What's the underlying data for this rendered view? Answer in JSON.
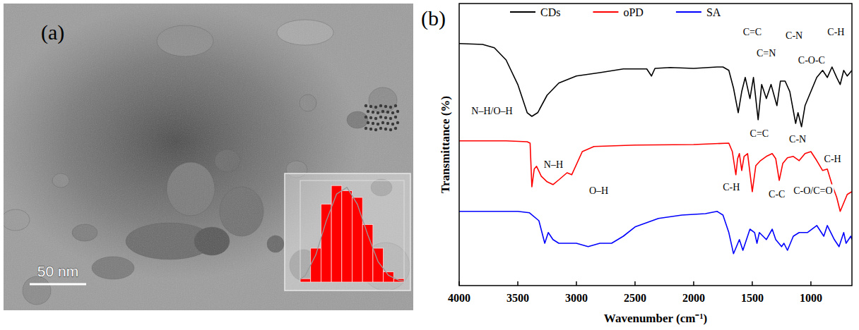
{
  "panels": {
    "a": "(a)",
    "b": "(b)"
  },
  "image": {
    "scale_bar": "50 nm"
  },
  "chart_data": [
    {
      "type": "histogram",
      "bins": [
        1.5,
        1.8,
        2.1,
        2.4,
        2.7,
        3.0,
        3.3,
        3.6,
        3.9,
        4.2,
        4.5
      ],
      "counts": [
        1,
        10,
        23,
        28.5,
        27,
        25,
        17,
        10,
        3,
        1
      ],
      "color": "#ff0000",
      "series": [
        {
          "type": "line",
          "color": "#9a9a9a",
          "x": [
            1.5,
            1.65,
            1.95,
            2.25,
            2.55,
            2.85,
            3.15,
            3.45,
            3.75,
            4.05,
            4.35,
            4.5
          ],
          "values": [
            0.8,
            2,
            8,
            18,
            26,
            28,
            23,
            14,
            6,
            2,
            0.5,
            0.3
          ]
        }
      ],
      "xlim": [
        1.5,
        4.5
      ],
      "ylim": [
        0,
        30
      ],
      "tick_labels": false
    },
    {
      "type": "line",
      "xlabel": "Wavenumber (cm⁻¹)",
      "ylabel": "Transmittance (%)",
      "xlim": [
        4000,
        650
      ],
      "ylim": [
        0,
        100
      ],
      "xticks": [
        4000,
        3500,
        3000,
        2500,
        2000,
        1500,
        1000
      ],
      "tick_labels": "x",
      "legend": "top",
      "series": [
        {
          "name": "CDs",
          "color": "#000000",
          "x": [
            4000,
            3800,
            3700,
            3600,
            3500,
            3420,
            3380,
            3330,
            3250,
            3150,
            3000,
            2800,
            2600,
            2400,
            2360,
            2330,
            2200,
            2000,
            1800,
            1750,
            1700,
            1660,
            1620,
            1590,
            1560,
            1520,
            1490,
            1450,
            1420,
            1380,
            1340,
            1290,
            1260,
            1220,
            1180,
            1130,
            1110,
            1080,
            1050,
            1000,
            950,
            900,
            860,
            820,
            780,
            750,
            720,
            690,
            650
          ],
          "values": [
            85.8,
            85.5,
            84.3,
            80,
            71.3,
            61.3,
            60,
            61.3,
            67.5,
            71.8,
            74.3,
            75.5,
            76.8,
            76.8,
            74.3,
            77,
            77.3,
            77,
            77.5,
            77.5,
            76.3,
            70,
            61.3,
            68.8,
            73.8,
            66.3,
            73.8,
            58.8,
            71.3,
            66.3,
            71.3,
            63.8,
            72.5,
            72.5,
            68.8,
            57.5,
            61.3,
            56.3,
            63.8,
            68.8,
            73.8,
            76.3,
            73.8,
            77.5,
            73.8,
            71.3,
            76.3,
            74.3,
            76.3
          ]
        },
        {
          "name": "oPD",
          "color": "#ff0000",
          "x": [
            4000,
            3600,
            3420,
            3395,
            3380,
            3360,
            3340,
            3300,
            3250,
            3200,
            3150,
            3080,
            3040,
            2950,
            2850,
            2500,
            2000,
            1700,
            1670,
            1640,
            1625,
            1610,
            1590,
            1570,
            1540,
            1500,
            1470,
            1430,
            1380,
            1330,
            1300,
            1270,
            1240,
            1200,
            1150,
            1100,
            1050,
            1000,
            950,
            900,
            860,
            820,
            780,
            750,
            720,
            690,
            650
          ],
          "values": [
            51.3,
            51.3,
            51,
            50.5,
            35,
            41.3,
            42.3,
            38.8,
            36.8,
            35.8,
            37.5,
            40,
            39.3,
            47.5,
            49.3,
            49.8,
            50,
            50.5,
            47.5,
            39.3,
            45,
            46.8,
            40.8,
            45.8,
            46.8,
            33.3,
            42.5,
            44.3,
            45.8,
            46.8,
            45,
            37.3,
            43.3,
            45.3,
            45.8,
            44.3,
            46.8,
            47.5,
            44.3,
            40.8,
            41.3,
            35.8,
            31.3,
            26.3,
            29.3,
            32.3,
            33.3
          ]
        },
        {
          "name": "SA",
          "color": "#0000ff",
          "x": [
            4000,
            3500,
            3400,
            3320,
            3270,
            3240,
            3200,
            3150,
            3000,
            2900,
            2800,
            2700,
            2600,
            2500,
            2300,
            2100,
            1900,
            1800,
            1750,
            1700,
            1660,
            1610,
            1580,
            1520,
            1480,
            1460,
            1440,
            1380,
            1330,
            1300,
            1250,
            1230,
            1200,
            1150,
            1100,
            1030,
            950,
            890,
            860,
            800,
            760,
            720,
            700,
            660,
            650
          ],
          "values": [
            26.3,
            26.3,
            25.8,
            23,
            15,
            18.8,
            16.3,
            15,
            15,
            13.8,
            15,
            15,
            17.5,
            20.8,
            23.8,
            25,
            25.5,
            26.3,
            25,
            18.8,
            11.3,
            16.3,
            12.5,
            20,
            18.8,
            15,
            18.8,
            16.3,
            20,
            16.3,
            13.8,
            15,
            12.5,
            17.5,
            18.8,
            18.8,
            21.3,
            17.5,
            21.3,
            16.3,
            13.8,
            18.8,
            15,
            17.5,
            16.3
          ]
        }
      ],
      "annotations": [
        {
          "text": "N–H/O–H",
          "x": 3720,
          "y": 62
        },
        {
          "text": "C=C",
          "x": 1500,
          "y": 90
        },
        {
          "text": "C=N",
          "x": 1381,
          "y": 82.5
        },
        {
          "text": "C-N",
          "x": 1143,
          "y": 88.75
        },
        {
          "text": "C-O-C",
          "x": 994,
          "y": 80
        },
        {
          "text": "C-H",
          "x": 786,
          "y": 90
        },
        {
          "text": "N–H",
          "x": 3196,
          "y": 43
        },
        {
          "text": "C=C",
          "x": 1440,
          "y": 54
        },
        {
          "text": "C-N",
          "x": 1113,
          "y": 52
        },
        {
          "text": "C-H",
          "x": 815,
          "y": 45
        },
        {
          "text": "O–H",
          "x": 2810,
          "y": 33.75
        },
        {
          "text": "C-H",
          "x": 1679,
          "y": 35
        },
        {
          "text": "C-C",
          "x": 1290,
          "y": 32.5
        },
        {
          "text": "C-O/C=O",
          "x": 982,
          "y": 33.75
        }
      ]
    }
  ]
}
